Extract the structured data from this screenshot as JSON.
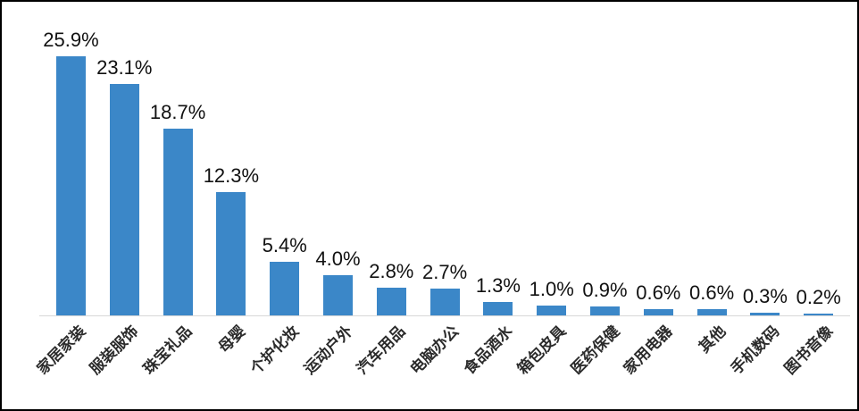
{
  "chart_data": {
    "type": "bar",
    "title": "",
    "xlabel": "",
    "ylabel": "",
    "ylim": [
      0,
      30
    ],
    "grid": false,
    "legend": false,
    "categories": [
      "家居家装",
      "服装服饰",
      "珠宝礼品",
      "母婴",
      "个护化妆",
      "运动户外",
      "汽车用品",
      "电脑办公",
      "食品酒水",
      "箱包皮具",
      "医药保健",
      "家用电器",
      "其他",
      "手机数码",
      "图书音像"
    ],
    "values": [
      25.9,
      23.1,
      18.7,
      12.3,
      5.4,
      4.0,
      2.8,
      2.7,
      1.3,
      1.0,
      0.9,
      0.6,
      0.6,
      0.3,
      0.2
    ],
    "value_labels": [
      "25.9%",
      "23.1%",
      "18.7%",
      "12.3%",
      "5.4%",
      "4.0%",
      "2.8%",
      "2.7%",
      "1.3%",
      "1.0%",
      "0.9%",
      "0.6%",
      "0.6%",
      "0.3%",
      "0.2%"
    ],
    "colors": {
      "bar": "#3b87c8",
      "axis_line": "#d8d8d8",
      "value_label_text": "#111111",
      "category_label_text": "#2b2b2b",
      "frame_border": "#000000",
      "background": "#ffffff"
    }
  }
}
